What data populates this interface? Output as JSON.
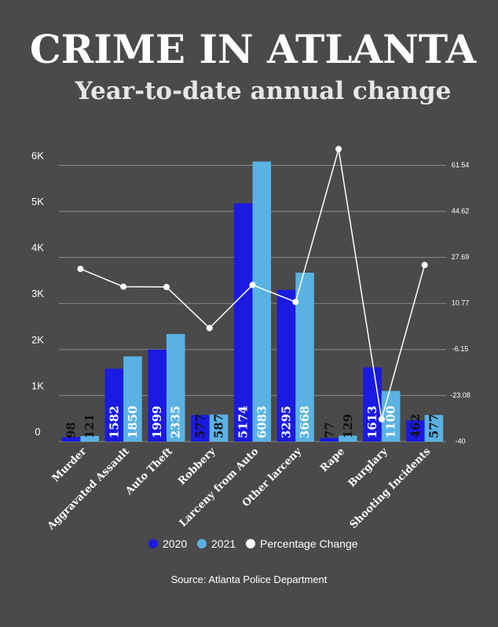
{
  "chart_data": {
    "type": "bar",
    "title": "CRIME IN ATLANTA",
    "subtitle": "Year-to-date annual change",
    "categories": [
      "Murder",
      "Aggravated Assault",
      "Auto Theft",
      "Robbery",
      "Larceny from Auto",
      "Other larceny",
      "Rape",
      "Burglary",
      "Shooting Incidents"
    ],
    "series": [
      {
        "name": "2020",
        "color": "#1a1ae0",
        "values": [
          98,
          1582,
          1999,
          577,
          5174,
          3295,
          77,
          1613,
          462
        ]
      },
      {
        "name": "2021",
        "color": "#5ab2e3",
        "values": [
          121,
          1850,
          2335,
          587,
          6083,
          3668,
          129,
          1100,
          577
        ]
      },
      {
        "name": "Percentage Change",
        "color": "#ffffff",
        "type": "line",
        "axis": "y2",
        "values": [
          23.47,
          16.94,
          16.81,
          1.73,
          17.57,
          11.32,
          67.53,
          -31.8,
          24.89
        ]
      }
    ],
    "ylim": [
      0,
      6400
    ],
    "yticks": [
      0,
      {
        "value": 1000,
        "label": "1K"
      },
      {
        "value": 2000,
        "label": "2K"
      },
      {
        "value": 3000,
        "label": "3K"
      },
      {
        "value": 4000,
        "label": "4K"
      },
      {
        "value": 5000,
        "label": "5K"
      },
      {
        "value": 6000,
        "label": "6K"
      }
    ],
    "y2lim": [
      -40,
      68.3
    ],
    "y2ticks": [
      -40,
      -23.08,
      -6.15,
      10.77,
      27.69,
      44.62,
      61.54
    ],
    "grid": true,
    "legend": "bottom",
    "source": "Source: Atlanta Police Department"
  }
}
